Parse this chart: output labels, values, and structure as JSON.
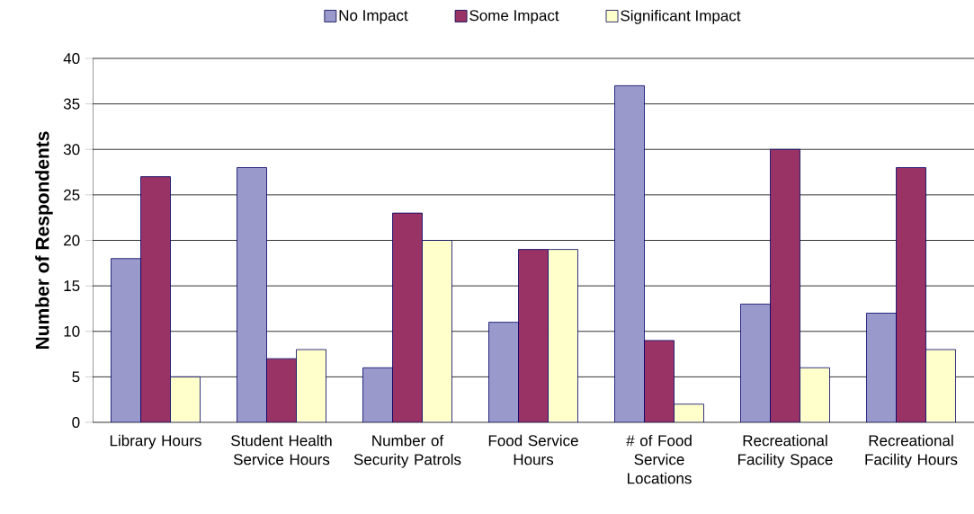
{
  "chart_data": {
    "type": "bar",
    "ylabel": "Number of Respondents",
    "categories": [
      "Library Hours",
      "Student Health Service Hours",
      "Number of Security Patrols",
      "Food Service Hours",
      "# of Food Service Locations",
      "Recreational Facility Space",
      "Recreational Facility Hours"
    ],
    "series": [
      {
        "name": "No Impact",
        "color": "#9999cc",
        "values": [
          18,
          28,
          6,
          11,
          37,
          13,
          12
        ]
      },
      {
        "name": "Some Impact",
        "color": "#993366",
        "values": [
          27,
          7,
          23,
          19,
          9,
          30,
          28
        ]
      },
      {
        "name": "Significant Impact",
        "color": "#ffffcc",
        "values": [
          5,
          8,
          20,
          19,
          2,
          6,
          8
        ]
      }
    ],
    "ylim": [
      0,
      40
    ],
    "yticks": [
      0,
      5,
      10,
      15,
      20,
      25,
      30,
      35,
      40
    ],
    "grid": "y",
    "legend": "top"
  }
}
